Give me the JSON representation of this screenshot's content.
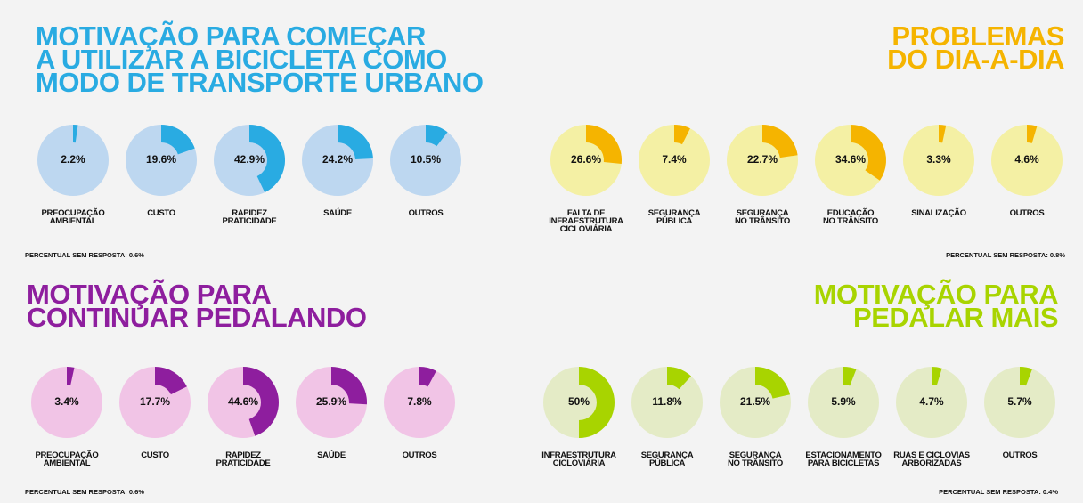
{
  "chart_data": [
    {
      "type": "donut",
      "title": "MOTIVAÇÃO PARA COMEÇAR\nA UTILIZAR A BICICLETA COMO\nMODO DE TRANSPORTE URBANO",
      "categories": [
        "PREOCUPAÇÃO\nAMBIENTAL",
        "CUSTO",
        "RAPIDEZ\nPRATICIDADE",
        "SAÚDE",
        "OUTROS"
      ],
      "values": [
        2.2,
        19.6,
        42.9,
        24.2,
        10.5
      ],
      "value_labels": [
        "2.2%",
        "19.6%",
        "42.9%",
        "24.2%",
        "10.5%"
      ],
      "note": "PERCENTUAL SEM RESPOSTA: 0.6%",
      "color": "#29abe2",
      "base_color": "#bdd7f0",
      "title_color": "#29abe2"
    },
    {
      "type": "donut",
      "title": "PROBLEMAS\nDO DIA-A-DIA",
      "categories": [
        "FALTA DE\nINFRAESTRUTURA\nCICLOVIÁRIA",
        "SEGURANÇA\nPÚBLICA",
        "SEGURANÇA\nNO TRÂNSITO",
        "EDUCAÇÃO\nNO TRÂNSITO",
        "SINALIZAÇÃO",
        "OUTROS"
      ],
      "values": [
        26.6,
        7.4,
        22.7,
        34.6,
        3.3,
        4.6
      ],
      "value_labels": [
        "26.6%",
        "7.4%",
        "22.7%",
        "34.6%",
        "3.3%",
        "4.6%"
      ],
      "note": "PERCENTUAL SEM RESPOSTA: 0.8%",
      "color": "#f5b400",
      "base_color": "#f4f0a4",
      "title_color": "#f5b400"
    },
    {
      "type": "donut",
      "title": "MOTIVAÇÃO PARA\nCONTINUAR PEDALANDO",
      "categories": [
        "PREOCUPAÇÃO\nAMBIENTAL",
        "CUSTO",
        "RAPIDEZ\nPRATICIDADE",
        "SAÚDE",
        "OUTROS"
      ],
      "values": [
        3.4,
        17.7,
        44.6,
        25.9,
        7.8
      ],
      "value_labels": [
        "3.4%",
        "17.7%",
        "44.6%",
        "25.9%",
        "7.8%"
      ],
      "note": "PERCENTUAL SEM RESPOSTA: 0.6%",
      "color": "#8e1e9e",
      "base_color": "#f1c4e6",
      "title_color": "#8e1e9e"
    },
    {
      "type": "donut",
      "title": "MOTIVAÇÃO  PARA\nPEDALAR MAIS",
      "categories": [
        "INFRAESTRUTURA\nCICLOVIÁRIA",
        "SEGURANÇA\nPÚBLICA",
        "SEGURANÇA\nNO TRÂNSITO",
        "ESTACIONAMENTO\nPARA BICICLETAS",
        "RUAS E CICLOVIAS\nARBORIZADAS",
        "OUTROS"
      ],
      "values": [
        50,
        11.8,
        21.5,
        5.9,
        4.7,
        5.7
      ],
      "value_labels": [
        "50%",
        "11.8%",
        "21.5%",
        "5.9%",
        "4.7%",
        "5.7%"
      ],
      "note": "PERCENTUAL SEM RESPOSTA: 0.4%",
      "color": "#a8d400",
      "base_color": "#e4ebc6",
      "title_color": "#a8d400"
    }
  ]
}
